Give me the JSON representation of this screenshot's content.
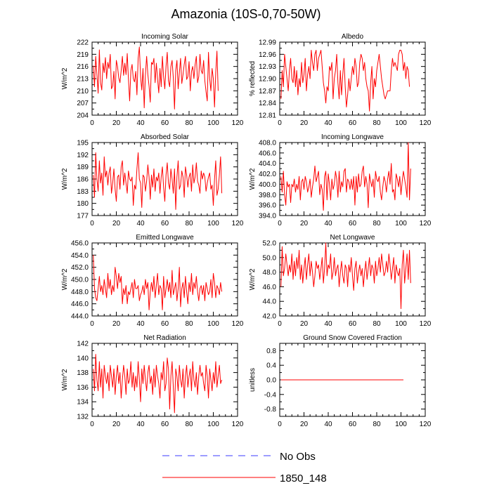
{
  "title": "Amazonia (10S-0,70-50W)",
  "colors": {
    "line": "#ff0000",
    "obs": "#3b3bff",
    "frame": "#000000"
  },
  "legend": {
    "entries": [
      {
        "label": "No Obs",
        "color": "#3b3bff",
        "style": "dashed"
      },
      {
        "label": "1850_148",
        "color": "#ff0000",
        "style": "solid"
      }
    ]
  },
  "chart_data": [
    {
      "type": "line",
      "title": "Incoming Solar",
      "ylabel": "W/m^2",
      "xlim": [
        0,
        120
      ],
      "xticks": [
        0,
        20,
        40,
        60,
        80,
        100,
        120
      ],
      "ylim": [
        204,
        222
      ],
      "yticks": [
        "204",
        "207",
        "210",
        "213",
        "216",
        "219",
        "222"
      ],
      "series": [
        {
          "name": "1850_148",
          "values": [
            216.2,
            211.0,
            218.5,
            214.0,
            209.4,
            220.1,
            212.0,
            210.2,
            216.8,
            214.5,
            218.2,
            213.0,
            217.0,
            215.5,
            219.0,
            210.5,
            211.2,
            214.8,
            208.0,
            217.5,
            216.0,
            213.2,
            212.0,
            215.0,
            218.5,
            213.8,
            216.8,
            214.0,
            219.2,
            212.8,
            207.5,
            215.0,
            216.5,
            213.0,
            212.2,
            214.8,
            209.0,
            218.0,
            220.8,
            213.5,
            210.2,
            215.5,
            205.8,
            214.0,
            218.5,
            214.0,
            211.2,
            207.2,
            217.0,
            216.5,
            218.0,
            212.0,
            216.8,
            213.0,
            209.5,
            215.5,
            211.0,
            218.5,
            213.5,
            210.5,
            216.0,
            219.5,
            212.5,
            211.0,
            216.0,
            217.5,
            213.2,
            205.5,
            215.0,
            217.5,
            210.5,
            214.5,
            218.0,
            211.8,
            214.0,
            216.5,
            218.5,
            212.8,
            213.5,
            217.2,
            210.0,
            214.8,
            216.0,
            213.0,
            216.5,
            218.5,
            212.0,
            213.5,
            219.0,
            215.0,
            214.2,
            217.5,
            212.5,
            209.8,
            207.5,
            219.5,
            213.0,
            210.0,
            215.5,
            213.0,
            206.0,
            214.5,
            219.8,
            210.0
          ]
        }
      ]
    },
    {
      "type": "line",
      "title": "Albedo",
      "ylabel": "% reflected",
      "xlim": [
        0,
        120
      ],
      "xticks": [
        0,
        20,
        40,
        60,
        80,
        100,
        120
      ],
      "ylim": [
        12.81,
        12.99
      ],
      "yticks": [
        "12.81",
        "12.84",
        "12.87",
        "12.90",
        "12.93",
        "12.96",
        "12.99"
      ],
      "series": [
        {
          "name": "1850_148",
          "values": [
            12.85,
            12.92,
            12.88,
            12.96,
            12.93,
            12.9,
            12.87,
            12.92,
            12.95,
            12.9,
            12.89,
            12.93,
            12.88,
            12.92,
            12.86,
            12.9,
            12.88,
            12.94,
            12.89,
            12.91,
            12.95,
            12.87,
            12.91,
            12.93,
            12.9,
            12.97,
            12.94,
            12.92,
            12.96,
            12.97,
            12.92,
            12.95,
            12.96,
            12.97,
            12.93,
            12.89,
            12.87,
            12.84,
            12.88,
            12.87,
            12.93,
            12.92,
            12.94,
            12.85,
            12.9,
            12.92,
            12.96,
            12.89,
            12.85,
            12.92,
            12.86,
            12.91,
            12.95,
            12.88,
            12.83,
            12.86,
            12.9,
            12.87,
            12.9,
            12.93,
            12.91,
            12.95,
            12.93,
            12.88,
            12.89,
            12.94,
            12.96,
            12.95,
            12.92,
            12.94,
            12.9,
            12.88,
            12.87,
            12.82,
            12.89,
            12.93,
            12.85,
            12.9,
            12.88,
            12.92,
            12.94,
            12.96,
            12.93,
            12.9,
            12.88,
            12.86,
            12.85,
            12.86,
            12.87,
            12.87,
            12.87,
            12.92,
            12.95,
            12.93,
            12.94,
            12.93,
            12.92,
            12.96,
            12.97,
            12.97,
            12.96,
            12.92,
            12.94,
            12.9,
            12.93,
            12.92,
            12.88
          ]
        }
      ]
    },
    {
      "type": "line",
      "title": "Absorbed Solar",
      "ylabel": "W/m^2",
      "xlim": [
        0,
        120
      ],
      "xticks": [
        0,
        20,
        40,
        60,
        80,
        100,
        120
      ],
      "ylim": [
        177,
        195
      ],
      "yticks": [
        "177",
        "180",
        "183",
        "186",
        "189",
        "192",
        "195"
      ],
      "series": [
        {
          "name": "1850_148",
          "values": [
            187.0,
            181.5,
            192.5,
            186.0,
            183.0,
            190.5,
            185.0,
            187.5,
            182.0,
            191.5,
            186.5,
            188.0,
            184.5,
            187.5,
            189.0,
            182.5,
            185.0,
            188.5,
            183.5,
            180.5,
            186.5,
            187.0,
            183.5,
            189.0,
            190.5,
            184.5,
            187.5,
            185.0,
            182.5,
            188.0,
            186.0,
            185.5,
            186.5,
            179.5,
            184.5,
            183.5,
            188.5,
            192.5,
            186.0,
            185.0,
            179.0,
            187.0,
            186.5,
            183.0,
            185.5,
            189.5,
            186.5,
            181.0,
            187.0,
            184.0,
            188.5,
            183.0,
            186.5,
            185.5,
            187.5,
            182.5,
            186.5,
            189.0,
            184.0,
            180.5,
            187.0,
            190.0,
            185.0,
            183.5,
            188.5,
            186.0,
            182.5,
            188.5,
            178.5,
            186.5,
            190.5,
            183.5,
            184.5,
            188.0,
            186.5,
            181.5,
            189.0,
            187.0,
            184.0,
            186.5,
            187.5,
            183.0,
            189.5,
            185.0,
            186.5,
            190.0,
            185.5,
            184.5,
            182.5,
            188.0,
            186.0,
            187.5,
            186.5,
            183.0,
            185.0,
            186.5,
            187.5,
            183.5,
            184.5,
            179.5,
            186.0,
            190.5,
            182.0,
            183.5,
            187.0,
            191.5,
            182.5
          ]
        }
      ]
    },
    {
      "type": "line",
      "title": "Incoming Longwave",
      "ylabel": "W/m^2",
      "xlim": [
        0,
        120
      ],
      "xticks": [
        0,
        20,
        40,
        60,
        80,
        100,
        120
      ],
      "ylim": [
        394,
        408
      ],
      "yticks": [
        "394.0",
        "396.0",
        "398.0",
        "400.0",
        "402.0",
        "404.0",
        "406.0",
        "408.0"
      ],
      "series": [
        {
          "name": "1850_148",
          "values": [
            401.5,
            398.5,
            402.5,
            398.0,
            396.0,
            400.5,
            399.5,
            400.0,
            396.5,
            400.0,
            399.5,
            401.0,
            398.5,
            400.0,
            399.0,
            401.5,
            397.0,
            400.5,
            401.0,
            399.0,
            401.5,
            400.5,
            398.5,
            399.5,
            401.0,
            397.5,
            399.5,
            401.0,
            403.5,
            400.5,
            401.5,
            402.5,
            398.0,
            400.0,
            399.0,
            395.0,
            401.5,
            402.5,
            397.0,
            402.0,
            400.0,
            397.0,
            401.0,
            399.0,
            400.0,
            402.5,
            401.0,
            397.5,
            402.5,
            398.5,
            400.5,
            399.5,
            402.5,
            403.0,
            398.5,
            401.0,
            400.5,
            399.0,
            401.0,
            399.0,
            401.5,
            396.0,
            401.5,
            398.5,
            402.0,
            399.5,
            400.0,
            402.5,
            403.5,
            399.5,
            401.5,
            400.0,
            395.5,
            402.0,
            400.5,
            399.5,
            401.0,
            397.5,
            402.5,
            401.0,
            400.5,
            401.5,
            398.5,
            397.0,
            399.5,
            401.5,
            400.5,
            398.5,
            401.0,
            402.5,
            400.0,
            404.0,
            398.5,
            399.0,
            397.0,
            402.0,
            401.0,
            399.5,
            401.5,
            398.0,
            400.5,
            402.5,
            401.0,
            399.5,
            397.5,
            408.0,
            397.0,
            403.0
          ]
        }
      ]
    },
    {
      "type": "line",
      "title": "Emitted Longwave",
      "ylabel": "W/m^2",
      "xlim": [
        0,
        120
      ],
      "xticks": [
        0,
        20,
        40,
        60,
        80,
        100,
        120
      ],
      "ylim": [
        444,
        456
      ],
      "yticks": [
        "444.0",
        "446.0",
        "448.0",
        "450.0",
        "452.0",
        "454.0",
        "456.0"
      ],
      "series": [
        {
          "name": "1850_148",
          "values": [
            454.0,
            448.5,
            447.0,
            446.5,
            448.5,
            450.5,
            448.0,
            449.0,
            447.5,
            450.0,
            448.5,
            447.0,
            451.0,
            448.5,
            450.0,
            447.5,
            449.0,
            448.0,
            452.0,
            450.5,
            448.5,
            451.0,
            449.5,
            450.5,
            446.0,
            448.5,
            447.5,
            449.0,
            446.0,
            448.0,
            447.5,
            448.5,
            449.5,
            447.0,
            450.0,
            448.5,
            448.5,
            449.0,
            446.5,
            447.5,
            448.0,
            449.0,
            447.5,
            450.0,
            448.5,
            449.5,
            445.0,
            448.0,
            449.5,
            448.0,
            450.5,
            447.0,
            449.0,
            451.0,
            447.5,
            449.0,
            448.5,
            445.0,
            450.5,
            447.0,
            448.5,
            450.0,
            448.0,
            449.5,
            447.0,
            451.5,
            447.5,
            448.5,
            449.5,
            446.5,
            448.5,
            452.0,
            445.5,
            448.5,
            449.5,
            447.0,
            450.5,
            448.0,
            446.0,
            449.5,
            448.0,
            451.0,
            447.5,
            449.5,
            448.5,
            450.5,
            448.0,
            446.5,
            448.5,
            449.0,
            447.5,
            449.0,
            446.5,
            449.5,
            448.5,
            447.5,
            448.0,
            450.0,
            447.0,
            451.0,
            449.5,
            447.0,
            449.0,
            448.5,
            447.5,
            449.5,
            448.0
          ]
        }
      ]
    },
    {
      "type": "line",
      "title": "Net Longwave",
      "ylabel": "W/m^2",
      "xlim": [
        0,
        120
      ],
      "xticks": [
        0,
        20,
        40,
        60,
        80,
        100,
        120
      ],
      "ylim": [
        42,
        52
      ],
      "yticks": [
        "42.0",
        "44.0",
        "46.0",
        "48.0",
        "50.0",
        "52.0"
      ],
      "series": [
        {
          "name": "1850_148",
          "values": [
            46.0,
            51.5,
            47.5,
            48.5,
            50.5,
            49.0,
            47.5,
            49.0,
            48.0,
            50.5,
            47.0,
            49.5,
            47.5,
            50.0,
            48.5,
            51.0,
            47.0,
            49.0,
            46.5,
            48.5,
            50.0,
            47.0,
            49.0,
            50.5,
            47.5,
            49.5,
            48.0,
            46.0,
            47.5,
            49.5,
            48.5,
            49.0,
            47.0,
            48.5,
            50.0,
            46.5,
            48.5,
            52.0,
            47.5,
            49.0,
            48.5,
            50.5,
            47.0,
            48.0,
            50.0,
            47.5,
            48.5,
            49.0,
            46.0,
            48.0,
            49.5,
            47.5,
            46.5,
            49.0,
            48.5,
            46.0,
            49.0,
            48.0,
            50.0,
            47.5,
            45.5,
            48.5,
            49.5,
            46.5,
            48.0,
            49.0,
            47.5,
            48.5,
            46.0,
            48.0,
            49.5,
            47.0,
            48.5,
            50.0,
            47.5,
            49.0,
            48.5,
            46.5,
            49.5,
            47.5,
            48.5,
            50.0,
            48.0,
            50.5,
            49.0,
            47.5,
            48.0,
            49.5,
            48.0,
            50.5,
            49.0,
            47.0,
            48.5,
            50.0,
            46.5,
            49.0,
            48.0,
            47.5,
            48.5,
            43.0,
            49.0,
            51.0,
            46.5,
            48.5,
            50.5,
            47.0,
            51.0,
            46.5
          ]
        }
      ]
    },
    {
      "type": "line",
      "title": "Net Radiation",
      "ylabel": "W/m^2",
      "xlim": [
        0,
        120
      ],
      "xticks": [
        0,
        20,
        40,
        60,
        80,
        100,
        120
      ],
      "ylim": [
        132,
        142
      ],
      "yticks": [
        "132",
        "134",
        "136",
        "138",
        "140",
        "142"
      ],
      "series": [
        {
          "name": "1850_148",
          "values": [
            138.5,
            135.5,
            140.5,
            137.0,
            135.5,
            139.5,
            136.0,
            138.5,
            134.5,
            139.0,
            137.5,
            136.5,
            138.0,
            135.5,
            139.0,
            137.5,
            136.0,
            138.5,
            135.0,
            137.5,
            139.0,
            136.5,
            138.0,
            134.5,
            137.0,
            139.0,
            137.5,
            135.0,
            138.5,
            136.5,
            137.0,
            139.5,
            136.0,
            138.0,
            135.5,
            137.5,
            136.0,
            139.5,
            137.0,
            134.0,
            138.5,
            136.5,
            139.0,
            137.0,
            135.5,
            138.0,
            139.0,
            136.5,
            137.5,
            135.0,
            138.5,
            136.0,
            139.0,
            137.5,
            136.5,
            134.5,
            138.0,
            137.0,
            139.5,
            135.5,
            136.5,
            140.0,
            138.5,
            133.0,
            137.5,
            139.5,
            136.0,
            132.5,
            138.5,
            137.5,
            135.5,
            139.0,
            137.0,
            136.0,
            138.5,
            134.5,
            137.5,
            139.0,
            136.0,
            137.5,
            138.5,
            135.5,
            139.5,
            137.0,
            136.0,
            138.0,
            135.0,
            137.5,
            139.0,
            137.5,
            138.0,
            136.5,
            135.5,
            139.0,
            137.5,
            134.5,
            138.5,
            137.0,
            135.5,
            138.0,
            136.5,
            139.5,
            136.0,
            137.5,
            139.0,
            136.5,
            137.0
          ]
        }
      ]
    },
    {
      "type": "line",
      "title": "Ground Snow Covered Fraction",
      "ylabel": "unitless",
      "xlim": [
        0,
        120
      ],
      "xticks": [
        0,
        20,
        40,
        60,
        80,
        100,
        120
      ],
      "ylim": [
        -1.0,
        1.0
      ],
      "yticks": [
        "-0.8",
        "-0.4",
        "0.0",
        "0.4",
        "0.8"
      ],
      "ytick_values": [
        -0.8,
        -0.4,
        0.0,
        0.4,
        0.8
      ],
      "series": [
        {
          "name": "1850_148",
          "constant": 0.0,
          "x_range": [
            1,
            102
          ]
        }
      ]
    }
  ]
}
